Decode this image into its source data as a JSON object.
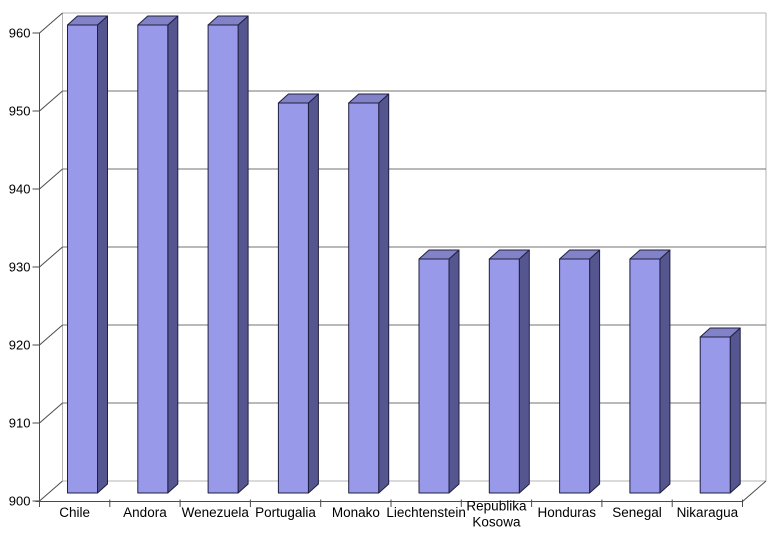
{
  "chart_data": {
    "type": "bar",
    "style": "3d-column",
    "title": "",
    "xlabel": "",
    "ylabel": "",
    "categories": [
      "Chile",
      "Andora",
      "Wenezuela",
      "Portugalia",
      "Monako",
      "Liechtenstein",
      "Republika Kosowa",
      "Honduras",
      "Senegal",
      "Nikaragua"
    ],
    "values": [
      960,
      960,
      960,
      950,
      950,
      930,
      930,
      930,
      930,
      920
    ],
    "ylim": [
      900,
      960
    ],
    "yticks": [
      900,
      910,
      920,
      930,
      940,
      950,
      960
    ],
    "ytick_labels": [
      "900",
      "910",
      "920",
      "930",
      "940",
      "950",
      "960"
    ],
    "grid": true,
    "legend": "none",
    "colors": {
      "background": "#ffffff",
      "bar_front": "#9999EA",
      "bar_top": "#8282C8",
      "bar_side": "#555590",
      "bar_outline": "#202040",
      "gridline": "#737373",
      "wall_edge": "#b4b4b4",
      "axis": "#4a4a4a",
      "text": "#000000"
    }
  }
}
